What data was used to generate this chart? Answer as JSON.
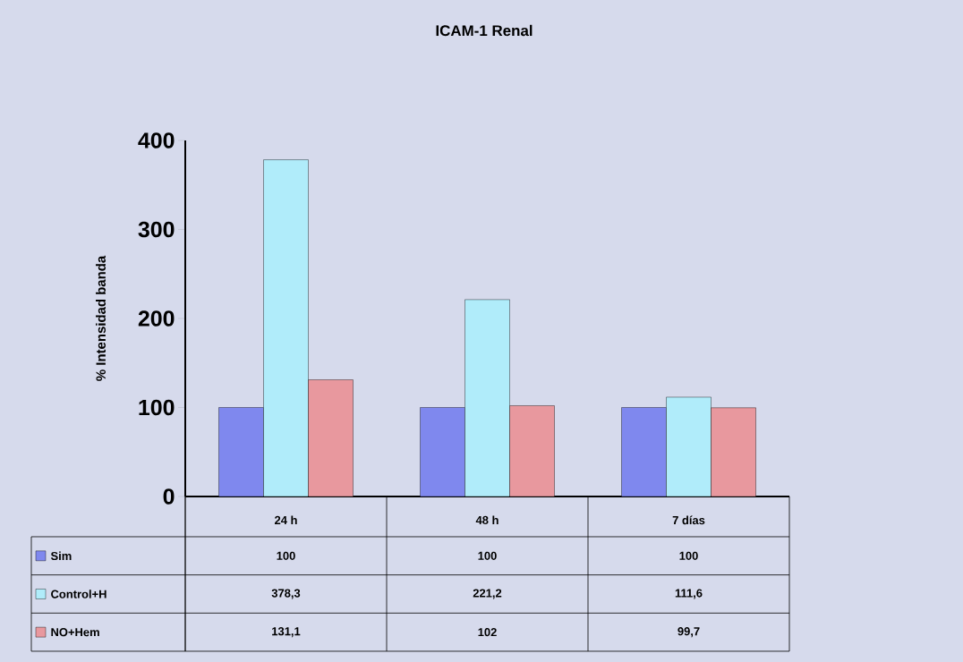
{
  "chart_data": {
    "type": "bar",
    "title": "ICAM-1 Renal",
    "ylabel": "% Intensidad banda",
    "categories": [
      "24 h",
      "48 h",
      "7 días"
    ],
    "series": [
      {
        "name": "Sim",
        "color": "#7f88ee",
        "values": [
          100,
          100,
          100
        ],
        "value_labels": [
          "100",
          "100",
          "100"
        ]
      },
      {
        "name": "Control+H",
        "color": "#b0ecfa",
        "values": [
          378.3,
          221.2,
          111.6
        ],
        "value_labels": [
          "378,3",
          "221,2",
          "111,6"
        ]
      },
      {
        "name": "NO+Hem",
        "color": "#e8989e",
        "values": [
          131.1,
          102,
          99.7
        ],
        "value_labels": [
          "131,1",
          "102",
          "99,7"
        ]
      }
    ],
    "ylim": [
      0,
      400
    ],
    "yticks": [
      0,
      100,
      200,
      300,
      400
    ],
    "legend": "bottom"
  }
}
